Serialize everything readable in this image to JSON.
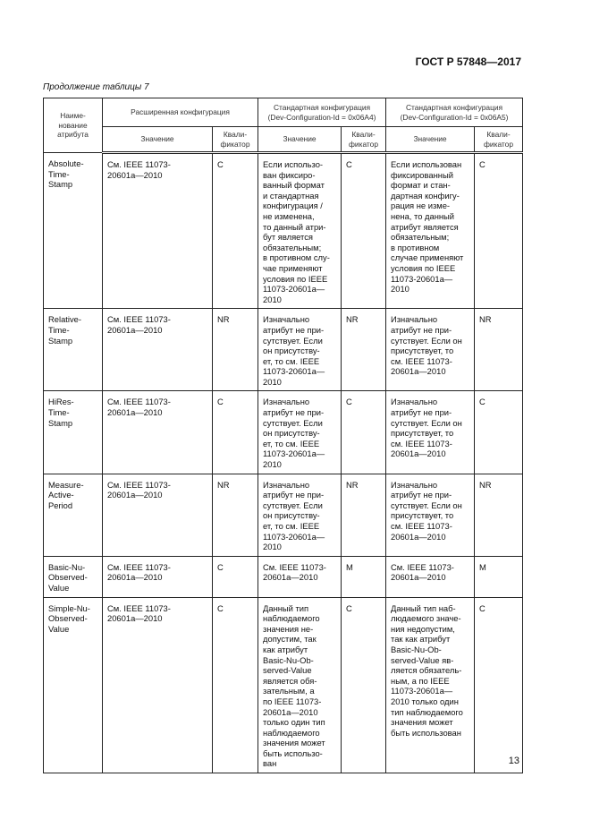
{
  "header": {
    "standard": "ГОСТ Р 57848—2017",
    "caption": "Продолжение таблицы 7"
  },
  "table": {
    "headers": {
      "name": "Наиме-\nнование\nатрибута",
      "extended": "Расширенная конфигурация",
      "std_a4": "Стандартная конфигурация\n(Dev-Configuration-Id = 0x06A4)",
      "std_a5": "Стандартная конфигурация\n(Dev-Configuration-Id = 0x06A5)",
      "value": "Значение",
      "qualifier": "Квали-\nфикатор"
    },
    "rows": [
      {
        "name": "Absolute-\nTime-\nStamp",
        "ext_value": "См. IEEE 11073-\n20601a—2010",
        "ext_q": "C",
        "a4_value": "Если использо-\nван фиксиро-\nванный формат\nи стандартная\nконфигурация /\nне изменена,\nто данный атри-\nбут является\nобязательным;\nв противном слу-\nчае применяют\nусловия по IEEE\n11073-20601a—\n2010",
        "a4_q": "C",
        "a5_value": "Если использован\nфиксированный\nформат и стан-\nдартная конфигу-\nрация не изме-\nнена, то данный\nатрибут является\nобязательным;\nв противном\nслучае применяют\nусловия по IEEE\n11073-20601a—\n2010",
        "a5_q": "C"
      },
      {
        "name": "Relative-\nTime-\nStamp",
        "ext_value": "См. IEEE 11073-\n20601a—2010",
        "ext_q": "NR",
        "a4_value": "Изначально\nатрибут не при-\nсутствует. Если\nон присутству-\nет, то см. IEEE\n11073-20601a—\n2010",
        "a4_q": "NR",
        "a5_value": "Изначально\nатрибут не при-\nсутствует. Если он\nприсутствует, то\nсм. IEEE 11073-\n20601a—2010",
        "a5_q": "NR"
      },
      {
        "name": "HiRes-\nTime-\nStamp",
        "ext_value": "См. IEEE 11073-\n20601a—2010",
        "ext_q": "C",
        "a4_value": "Изначально\nатрибут не при-\nсутствует. Если\nон присутству-\nет, то см. IEEE\n11073-20601a—\n2010",
        "a4_q": "C",
        "a5_value": "Изначально\nатрибут не при-\nсутствует. Если он\nприсутствует, то\nсм. IEEE 11073-\n20601a—2010",
        "a5_q": "C"
      },
      {
        "name": "Measure-\nActive-\nPeriod",
        "ext_value": "См. IEEE 11073-\n20601a—2010",
        "ext_q": "NR",
        "a4_value": "Изначально\nатрибут не при-\nсутствует. Если\nон присутству-\nет, то см. IEEE\n11073-20601a—\n2010",
        "a4_q": "NR",
        "a5_value": "Изначально\nатрибут не при-\nсутствует. Если он\nприсутствует, то\nсм. IEEE 11073-\n20601a—2010",
        "a5_q": "NR"
      },
      {
        "name": "Basic-Nu-\nObserved-\nValue",
        "ext_value": "См. IEEE 11073-\n20601a—2010",
        "ext_q": "C",
        "a4_value": "См. IEEE 11073-\n20601a—2010",
        "a4_q": "M",
        "a5_value": "См. IEEE 11073-\n20601a—2010",
        "a5_q": "M"
      },
      {
        "name": "Simple-Nu-\nObserved-\nValue",
        "ext_value": "См. IEEE 11073-\n20601a—2010",
        "ext_q": "C",
        "a4_value": "Данный тип\nнаблюдаемого\nзначения не-\nдопустим, так\nкак атрибут\nBasic-Nu-Ob-\nserved-Value\nявляется обя-\nзательным, а\nпо IEEE 11073-\n20601a—2010\nтолько один тип\nнаблюдаемого\nзначения может\nбыть использо-\nван",
        "a4_q": "C",
        "a5_value": "Данный тип наб-\nлюдаемого значе-\nния недопустим,\nтак как атрибут\nBasic-Nu-Ob-\nserved-Value яв-\nляется обязатель-\nным, а по IEEE\n11073-20601a—\n2010 только один\nтип наблюдаемого\nзначения может\nбыть использован",
        "a5_q": "C"
      }
    ]
  },
  "footer": {
    "page_number": "13"
  }
}
